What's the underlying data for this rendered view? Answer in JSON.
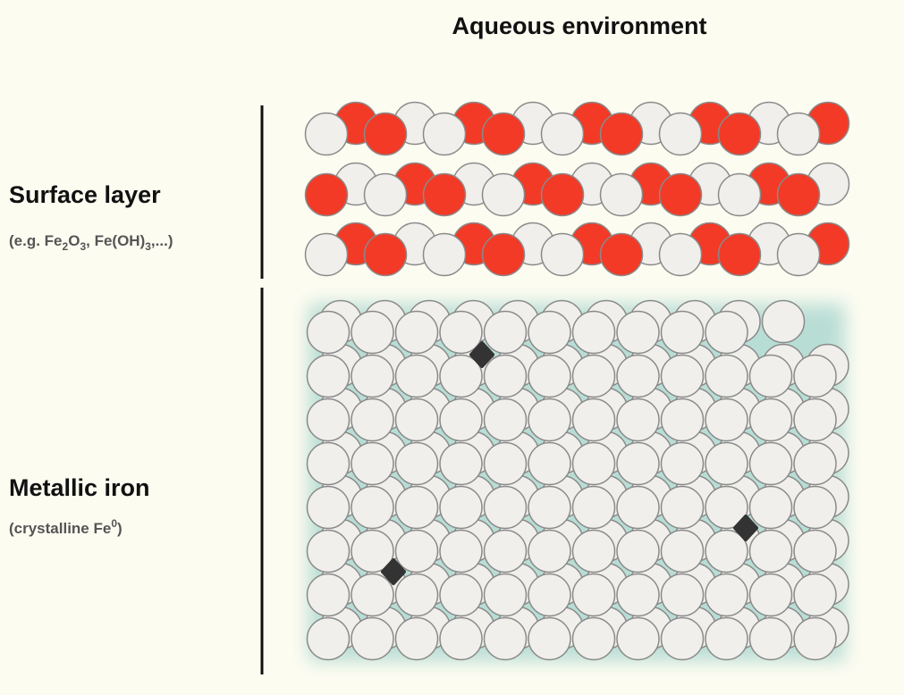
{
  "title": "Aqueous environment",
  "surface": {
    "label": "Surface layer",
    "note": [
      "(e.g. Fe",
      "2",
      "O",
      "3",
      ", Fe(OH)",
      "3",
      ",...)"
    ]
  },
  "metal": {
    "label": "Metallic iron",
    "note": [
      "(crystalline Fe",
      "0",
      ")"
    ]
  }
}
